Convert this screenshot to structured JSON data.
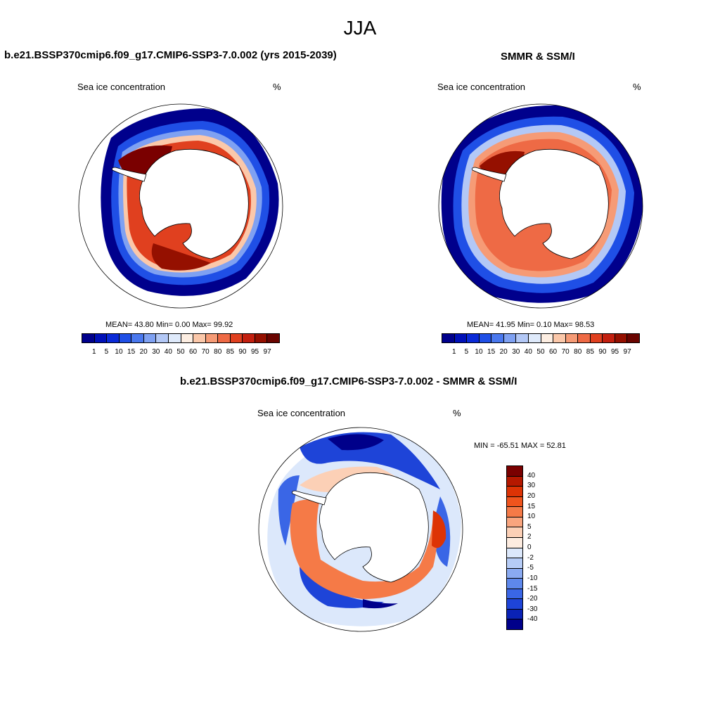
{
  "title": "JJA",
  "panels": [
    {
      "id": "model",
      "title": "b.e21.BSSP370cmip6.f09_g17.CMIP6-SSP3-7.0.002 (yrs 2015-2039)",
      "left_label": "Sea ice concentration",
      "right_label": "%",
      "stats": "MEAN=  43.80  Min=   0.00  Max=  99.92"
    },
    {
      "id": "obs",
      "title": "SMMR & SSM/I",
      "left_label": "Sea ice concentration",
      "right_label": "%",
      "stats": "MEAN=  41.95  Min=   0.10  Max=  98.53"
    },
    {
      "id": "diff",
      "title": "b.e21.BSSP370cmip6.f09_g17.CMIP6-SSP3-7.0.002 - SMMR & SSM/I",
      "left_label": "Sea ice concentration",
      "right_label": "%",
      "stats": "MIN = -65.51 MAX =  52.81"
    }
  ],
  "abs_scale": {
    "ticks": [
      "1",
      "5",
      "10",
      "15",
      "20",
      "30",
      "40",
      "50",
      "60",
      "70",
      "80",
      "85",
      "90",
      "95",
      "97"
    ],
    "colors": [
      "#00008c",
      "#0010b8",
      "#0a2ad8",
      "#1f4fe6",
      "#4a78ee",
      "#7fa1f2",
      "#b3c8f6",
      "#dfeafb",
      "#fdeee2",
      "#fbc8aa",
      "#f69b76",
      "#ee6a45",
      "#e0401f",
      "#c3200f",
      "#951000",
      "#6a0400"
    ]
  },
  "diff_scale": {
    "ticks": [
      "40",
      "30",
      "20",
      "15",
      "10",
      "5",
      "2",
      "0",
      "-2",
      "-5",
      "-10",
      "-15",
      "-20",
      "-30",
      "-40"
    ],
    "colors": [
      "#7a0000",
      "#b51800",
      "#dd3305",
      "#f0541d",
      "#f57a47",
      "#f9a57e",
      "#fcd0b6",
      "#fdece0",
      "#dce8fb",
      "#b6ccf6",
      "#8aaaf1",
      "#5e88ec",
      "#3a66e6",
      "#1e44d8",
      "#0a22b6",
      "#00008a"
    ]
  }
}
